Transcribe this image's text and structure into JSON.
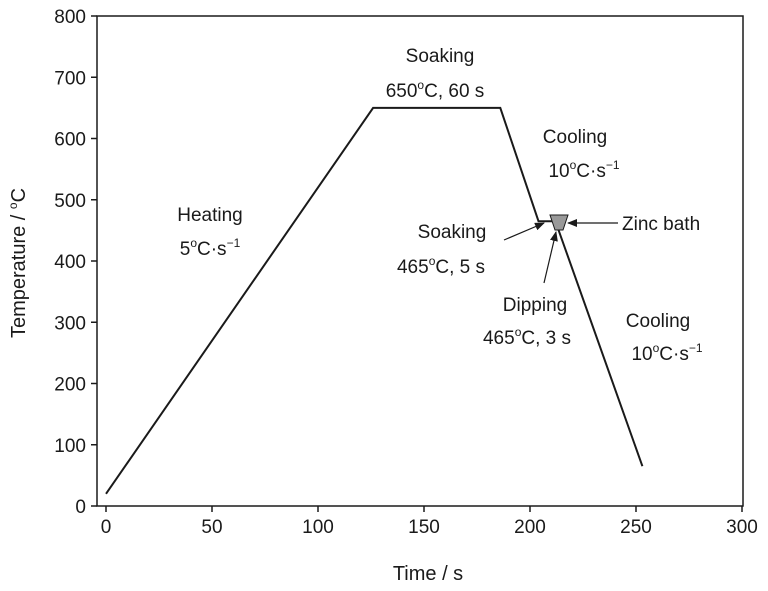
{
  "chart_data": {
    "type": "line",
    "title": "",
    "xlabel": "Time / s",
    "ylabel_main": "Temperature / ",
    "ylabel_sup": "o",
    "ylabel_unit": "C",
    "xlim": [
      0,
      300
    ],
    "ylim": [
      0,
      800
    ],
    "x_ticks": [
      0,
      50,
      100,
      150,
      200,
      250,
      300
    ],
    "y_ticks": [
      0,
      100,
      200,
      300,
      400,
      500,
      600,
      700,
      800
    ],
    "grid": false,
    "line_color": "#1a1a1a",
    "zinc_bath_color": "#999999",
    "series": [
      {
        "points": [
          {
            "x": 0,
            "y": 20
          },
          {
            "x": 126,
            "y": 650
          },
          {
            "x": 186,
            "y": 650
          },
          {
            "x": 204,
            "y": 465
          },
          {
            "x": 209,
            "y": 465
          },
          {
            "x": 212,
            "y": 465
          },
          {
            "x": 253,
            "y": 65
          }
        ]
      }
    ],
    "annotations": {
      "heating": {
        "line1": "Heating",
        "line2_a": "5",
        "line2_sup1": "o",
        "line2_b": "C·s",
        "line2_sup2": "−1"
      },
      "soaking_top": {
        "line1": "Soaking",
        "line2_a": "650",
        "line2_sup": "o",
        "line2_b": "C, 60 s"
      },
      "cooling_1": {
        "line1": "Cooling",
        "line2_a": "10",
        "line2_sup1": "o",
        "line2_b": "C·s",
        "line2_sup2": "−1"
      },
      "zinc_bath": {
        "text": "Zinc bath"
      },
      "soaking_465": {
        "line1": "Soaking",
        "line2_a": "465",
        "line2_sup": "o",
        "line2_b": "C, 5 s"
      },
      "dipping": {
        "line1": "Dipping",
        "line2_a": "465",
        "line2_sup": "o",
        "line2_b": "C, 3 s"
      },
      "cooling_2": {
        "line1": "Cooling",
        "line2_a": "10",
        "line2_sup1": "o",
        "line2_b": "C·s",
        "line2_sup2": "−1"
      }
    }
  }
}
